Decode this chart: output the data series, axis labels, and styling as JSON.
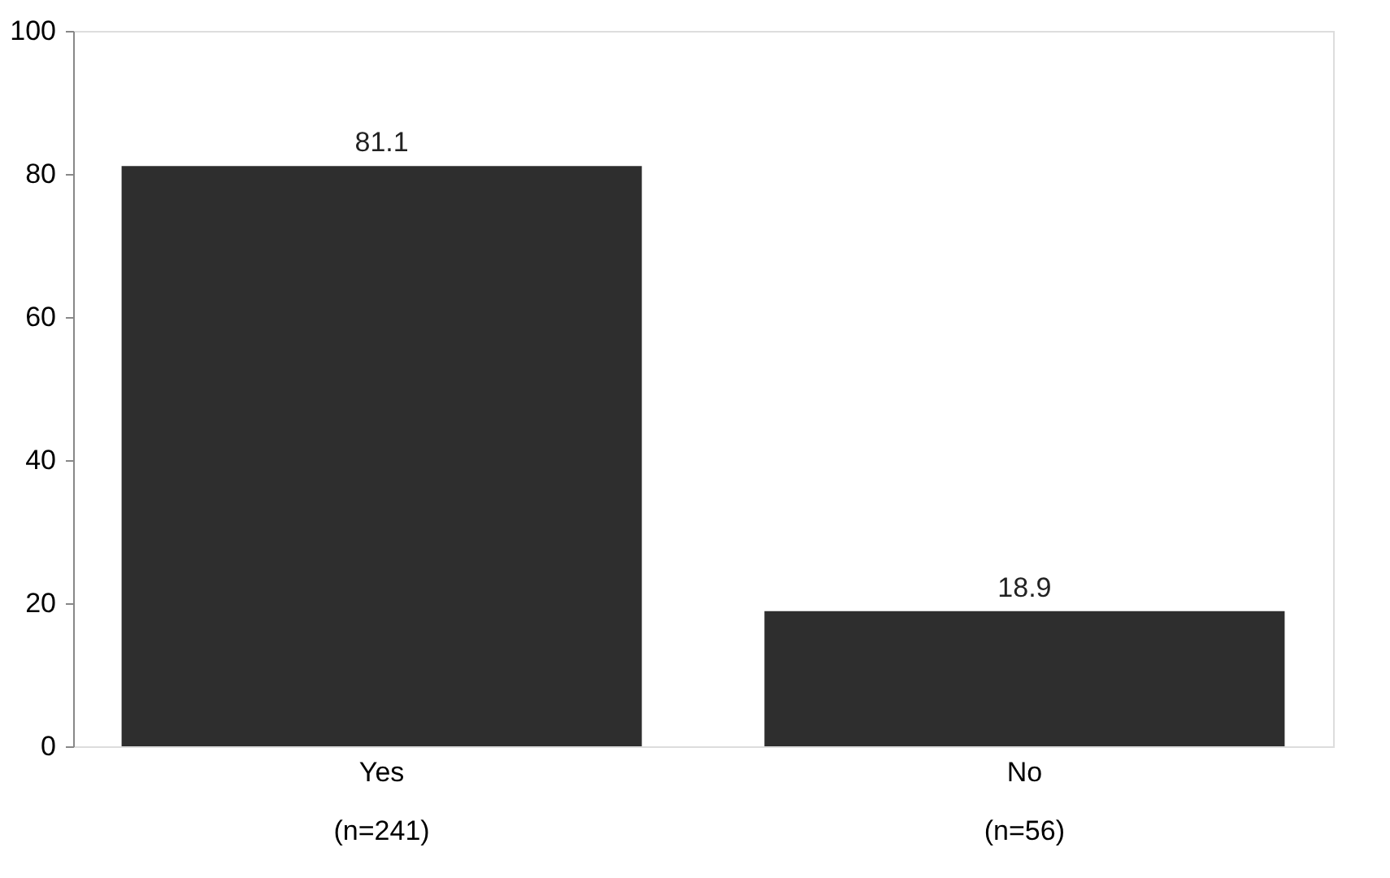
{
  "chart_data": {
    "type": "bar",
    "categories": [
      "Yes\n(n=241)",
      "No\n(n=56)"
    ],
    "values": [
      81.1,
      18.9
    ],
    "color": "#2e2e2e",
    "ylim": [
      0,
      100
    ],
    "yticks": [
      0,
      20,
      40,
      60,
      80,
      100
    ],
    "grid": false,
    "data_labels": true
  }
}
